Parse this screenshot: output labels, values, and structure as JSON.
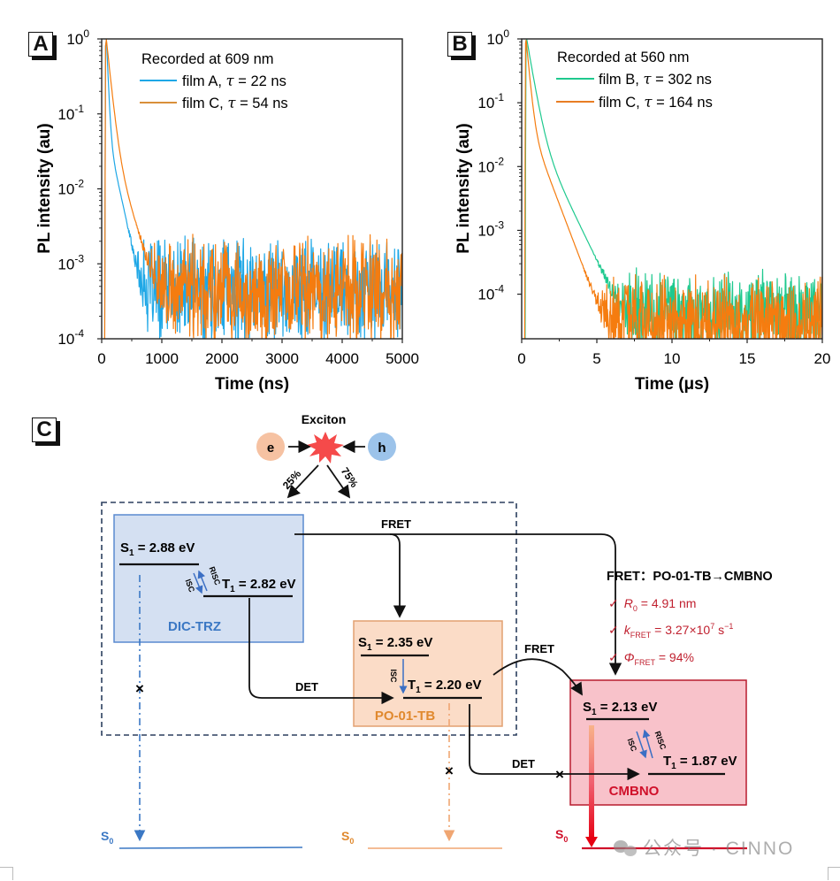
{
  "panels": {
    "a_label": "A",
    "b_label": "B",
    "c_label": "C"
  },
  "chart_data": [
    {
      "type": "line",
      "panel": "A",
      "title": "",
      "annotation": "Recorded at 609 nm",
      "xlabel": "Time (ns)",
      "ylabel": "PL intensity (au)",
      "xlim": [
        0,
        5000
      ],
      "ylim": [
        0.0001,
        1
      ],
      "yscale": "log",
      "xticks": [
        "0",
        "1000",
        "2000",
        "3000",
        "4000",
        "5000"
      ],
      "xtick_values": [
        0,
        1000,
        2000,
        3000,
        4000,
        5000
      ],
      "yticks": [
        {
          "base": "10",
          "exp": "0"
        },
        {
          "base": "10",
          "exp": "-1"
        },
        {
          "base": "10",
          "exp": "-2"
        },
        {
          "base": "10",
          "exp": "-3"
        },
        {
          "base": "10",
          "exp": "-4"
        }
      ],
      "ytick_values": [
        1,
        0.1,
        0.01,
        0.001,
        0.0001
      ],
      "grid": false,
      "legend_position": "top-right",
      "series": [
        {
          "name": "film A, τ = 22 ns",
          "label_prefix": "film A, ",
          "tau": "τ",
          "label_suffix": " = 22 ns",
          "color": "#1ea7e6",
          "peak_time": 80,
          "lifetime": 22,
          "tail_decay": 120,
          "noise_floor": 0.0005,
          "floor_start": 600
        },
        {
          "name": "film C, τ = 54 ns",
          "label_prefix": "film C, ",
          "tau": "τ",
          "label_suffix": " = 54 ns",
          "color": "#f57c0f",
          "legend_color": "#d98f3a",
          "peak_time": 80,
          "lifetime": 54,
          "tail_decay": 170,
          "noise_floor": 0.0005,
          "floor_start": 900
        }
      ]
    },
    {
      "type": "line",
      "panel": "B",
      "title": "",
      "annotation": "Recorded at 560 nm",
      "xlabel": "Time (μs)",
      "ylabel": "PL intensity (au)",
      "xlim": [
        0,
        20
      ],
      "ylim": [
        2e-05,
        1
      ],
      "yscale": "log",
      "xticks": [
        "0",
        "5",
        "10",
        "15",
        "20"
      ],
      "xtick_values": [
        0,
        5,
        10,
        15,
        20
      ],
      "yticks": [
        {
          "base": "10",
          "exp": "0"
        },
        {
          "base": "10",
          "exp": "-1"
        },
        {
          "base": "10",
          "exp": "-2"
        },
        {
          "base": "10",
          "exp": "-3"
        },
        {
          "base": "10",
          "exp": "-4"
        }
      ],
      "ytick_values": [
        1,
        0.1,
        0.01,
        0.001,
        0.0001
      ],
      "grid": false,
      "legend_position": "top-right",
      "series": [
        {
          "name": "film B, τ = 302 ns",
          "label_prefix": "film B, ",
          "tau": "τ",
          "label_suffix": " = 302 ns",
          "color": "#1ec98e",
          "peak_time": 0.35,
          "lifetime": 0.302,
          "tail_decay": 0.9,
          "noise_floor": 6e-05,
          "floor_start": 6.5
        },
        {
          "name": "film C, τ = 164 ns",
          "label_prefix": "film C, ",
          "tau": "τ",
          "label_suffix": " = 164 ns",
          "color": "#f57c0f",
          "legend_color": "#e87d24",
          "peak_time": 0.3,
          "lifetime": 0.164,
          "tail_decay": 0.7,
          "noise_floor": 4e-05,
          "floor_start": 4.5
        }
      ]
    }
  ],
  "diagram": {
    "exciton_label": "Exciton",
    "electron": "e",
    "hole": "h",
    "singlet_pct": "25%",
    "triplet_pct": "75%",
    "fret_top": "FRET",
    "fret_mid": "FRET",
    "det_left": "DET",
    "det_right": "DET",
    "dic_trz": {
      "name": "DIC-TRZ",
      "s1": "2.88 eV",
      "t1": "2.82 eV",
      "isc": "ISC",
      "risc": "RISC",
      "color": "#3b78c4",
      "fill": "#d4e0f2"
    },
    "po01tb": {
      "name": "PO-01-TB",
      "s1": "2.35 eV",
      "t1": "2.20 eV",
      "isc": "ISC",
      "color": "#e0892e",
      "fill": "#fbdcc7"
    },
    "cmbno": {
      "name": "CMBNO",
      "s1": "2.13 eV",
      "t1": "1.87 eV",
      "isc": "ISC",
      "risc": "RISC",
      "color": "#d0102a",
      "fill": "#f8c2ca"
    },
    "s_sym": "S",
    "t_sym": "T",
    "sub1": "1",
    "sub0": "0",
    "eq": " = ",
    "fret_info": {
      "title": "FRET：PO-01-TB→CMBNO",
      "check": "✓",
      "r0_sym": "R",
      "r0_sub": "0",
      "r0_val": " = 4.91 nm",
      "k_sym": "k",
      "k_sub": "FRET",
      "k_val": " = 3.27×10",
      "k_exp": "7",
      "k_unit": " s",
      "k_unit_exp": "−1",
      "phi_sym": "Φ",
      "phi_sub": "FRET",
      "phi_val": " = 94%",
      "color": "#c0202f"
    },
    "blocked_mark": "×"
  },
  "watermark": "公众号 · CINNO"
}
